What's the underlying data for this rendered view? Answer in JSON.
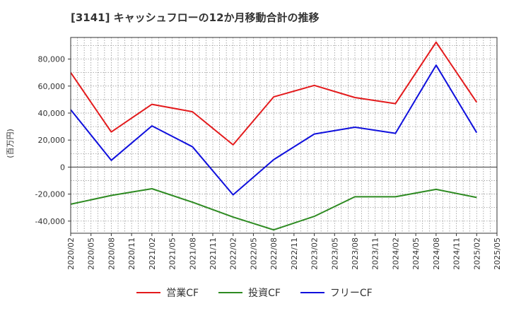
{
  "chart_data": {
    "type": "line",
    "title": "[3141]  キャッシュフローの12か月移動合計の推移",
    "ylabel": "(百万円)",
    "xlabel": "",
    "x_ticks": [
      "2020/02",
      "2020/05",
      "2020/08",
      "2020/11",
      "2021/02",
      "2021/05",
      "2021/08",
      "2021/11",
      "2022/02",
      "2022/05",
      "2022/08",
      "2022/11",
      "2023/02",
      "2023/05",
      "2023/08",
      "2023/11",
      "2024/02",
      "2024/05",
      "2024/08",
      "2024/11",
      "2025/02",
      "2025/05"
    ],
    "y_ticks": [
      80000,
      60000,
      40000,
      20000,
      0,
      -20000,
      -40000
    ],
    "y_tick_labels": [
      "80,000",
      "60,000",
      "40,000",
      "20,000",
      "0",
      "-20,000",
      "-40,000"
    ],
    "ylim": [
      -49000,
      96000
    ],
    "grid": true,
    "legend_position": "bottom",
    "series": [
      {
        "name": "営業CF",
        "color": "#e31a1c",
        "points": [
          {
            "x": "2020/02",
            "y": 70000
          },
          {
            "x": "2020/08",
            "y": 26000
          },
          {
            "x": "2021/02",
            "y": 46500
          },
          {
            "x": "2021/08",
            "y": 41000
          },
          {
            "x": "2022/02",
            "y": 16500
          },
          {
            "x": "2022/08",
            "y": 52000
          },
          {
            "x": "2023/02",
            "y": 60500
          },
          {
            "x": "2023/08",
            "y": 51500
          },
          {
            "x": "2024/02",
            "y": 47000
          },
          {
            "x": "2024/08",
            "y": 92500
          },
          {
            "x": "2025/02",
            "y": 48000
          }
        ]
      },
      {
        "name": "投資CF",
        "color": "#2e8b22",
        "points": [
          {
            "x": "2020/02",
            "y": -27500
          },
          {
            "x": "2020/08",
            "y": -21000
          },
          {
            "x": "2021/02",
            "y": -16000
          },
          {
            "x": "2021/08",
            "y": -26000
          },
          {
            "x": "2022/02",
            "y": -37000
          },
          {
            "x": "2022/08",
            "y": -46500
          },
          {
            "x": "2023/02",
            "y": -36500
          },
          {
            "x": "2023/08",
            "y": -22000
          },
          {
            "x": "2024/02",
            "y": -22000
          },
          {
            "x": "2024/08",
            "y": -16500
          },
          {
            "x": "2025/02",
            "y": -22500
          }
        ]
      },
      {
        "name": "フリーCF",
        "color": "#1010dd",
        "points": [
          {
            "x": "2020/02",
            "y": 42500
          },
          {
            "x": "2020/08",
            "y": 5000
          },
          {
            "x": "2021/02",
            "y": 30500
          },
          {
            "x": "2021/08",
            "y": 15000
          },
          {
            "x": "2022/02",
            "y": -20500
          },
          {
            "x": "2022/08",
            "y": 5500
          },
          {
            "x": "2023/02",
            "y": 24500
          },
          {
            "x": "2023/08",
            "y": 29500
          },
          {
            "x": "2024/02",
            "y": 25000
          },
          {
            "x": "2024/08",
            "y": 75500
          },
          {
            "x": "2025/02",
            "y": 25500
          }
        ]
      }
    ]
  }
}
